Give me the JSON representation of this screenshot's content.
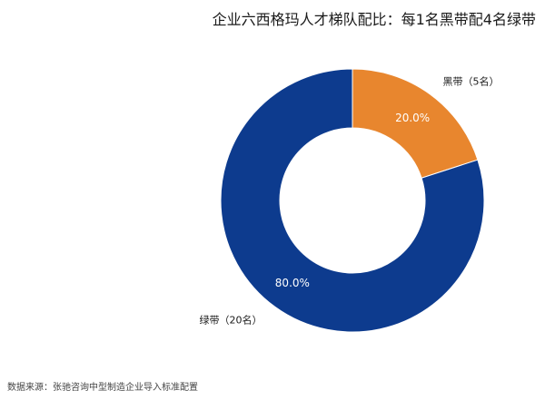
{
  "chart_data": {
    "type": "pie",
    "subtype": "donut",
    "title": "企业六西格玛人才梯队配比：每1名黑带配4名绿带",
    "categories": [
      "黑带（5名）",
      "绿带（20名）"
    ],
    "values": [
      5,
      20
    ],
    "percent_labels": [
      "20.0%",
      "80.0%"
    ],
    "colors": [
      "#E8862E",
      "#0D3B8E"
    ],
    "legend": "none"
  },
  "source_note": "数据来源：张驰咨询中型制造企业导入标准配置"
}
